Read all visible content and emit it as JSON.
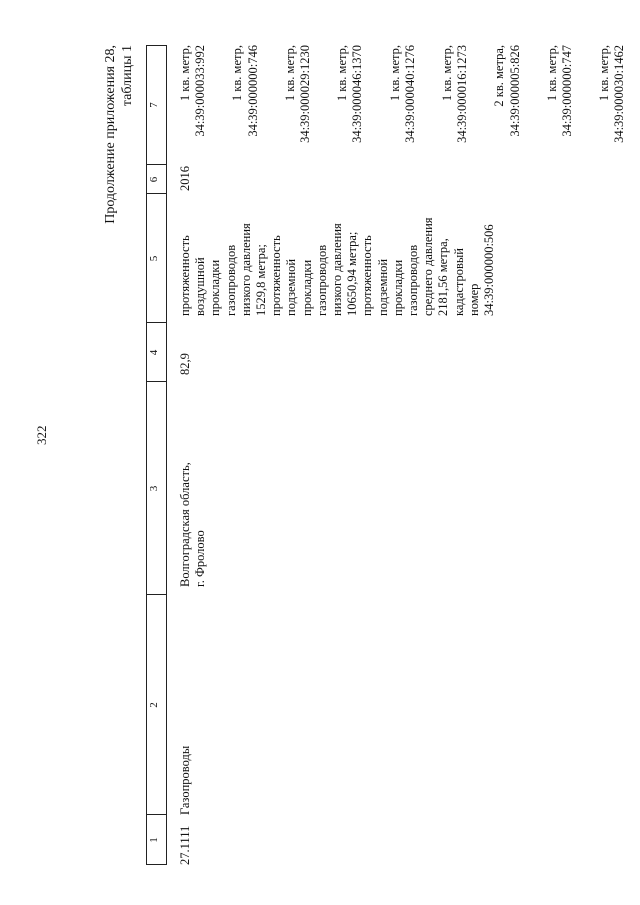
{
  "page_number": "322",
  "header": {
    "line1": "Продолжение приложения 28,",
    "line2": "таблицы 1"
  },
  "columns": [
    "1",
    "2",
    "3",
    "4",
    "5",
    "6",
    "7"
  ],
  "row": {
    "code": "27.1111",
    "name": "Газопроводы",
    "location": [
      "Волгоградская область,",
      "г. Фролово"
    ],
    "value": "82,9",
    "description": [
      "протяженность",
      "воздушной",
      "прокладки",
      "газопроводов",
      "низкого давления",
      "1529,8 метра;",
      "протяженность",
      "подземной",
      "прокладки",
      "газопроводов",
      "низкого давления",
      "10650,94 метра;",
      "протяженность",
      "подземной",
      "прокладки",
      "газопроводов",
      "среднего давления",
      "2181,56 метра,",
      "кадастровый",
      "номер",
      "34:39:000000:506"
    ],
    "year": "2016",
    "plots": [
      {
        "area": "1 кв. метр,",
        "number": "34:39:000033:992"
      },
      {
        "area": "1 кв. метр,",
        "number": "34:39:000000:746"
      },
      {
        "area": "1 кв. метр,",
        "number": "34:39:000029:1230"
      },
      {
        "area": "1 кв. метр,",
        "number": "34:39:000046:1370"
      },
      {
        "area": "1 кв. метр,",
        "number": "34:39:000040:1276"
      },
      {
        "area": "1 кв. метр,",
        "number": "34:39:000016:1273"
      },
      {
        "area": "2 кв. метра,",
        "number": "34:39:000005:826"
      },
      {
        "area": "1 кв. метр,",
        "number": "34:39:000000:747"
      },
      {
        "area": "1 кв. метр,",
        "number": "34:39:000030:1462"
      }
    ]
  }
}
